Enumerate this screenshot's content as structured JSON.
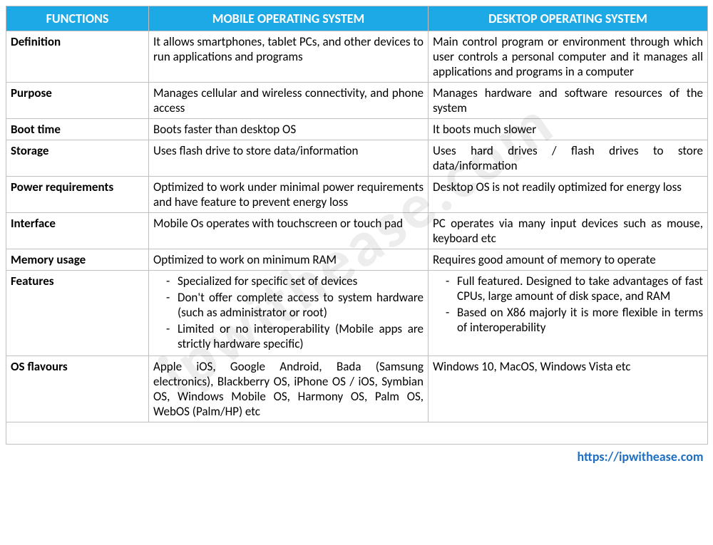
{
  "colors": {
    "header_bg": "#1ca9e6",
    "header_text": "#ffffff",
    "border": "#bfbfbf",
    "link": "#1f6fc2",
    "watermark": "rgba(0,0,0,0.07)"
  },
  "watermark_text": "ipwithease.com",
  "header": {
    "functions": "FUNCTIONS",
    "mobile": "MOBILE OPERATING SYSTEM",
    "desktop": "DESKTOP OPERATING SYSTEM"
  },
  "rows": {
    "definition": {
      "label": "Definition",
      "mobile": "It allows smartphones, tablet PCs, and other devices to run applications and programs",
      "desktop": "Main control program or environment through which user controls a personal computer and it manages all applications and programs in a computer"
    },
    "purpose": {
      "label": "Purpose",
      "mobile": "Manages cellular and wireless connectivity, and phone access",
      "desktop": "Manages hardware and software resources of the system"
    },
    "boot": {
      "label": "Boot time",
      "mobile": "Boots faster than desktop OS",
      "desktop": "It boots much slower"
    },
    "storage": {
      "label": "Storage",
      "mobile": "Uses flash drive to store data/information",
      "desktop": "Uses hard drives / flash drives to store data/information"
    },
    "power": {
      "label": "Power requirements",
      "mobile": "Optimized to work under minimal power requirements and have feature to prevent energy loss",
      "desktop": "Desktop OS is not readily optimized for energy loss"
    },
    "interface": {
      "label": "Interface",
      "mobile": "Mobile Os operates with touchscreen or touch pad",
      "desktop": "PC operates via many input devices such as mouse, keyboard etc"
    },
    "memory": {
      "label": "Memory usage",
      "mobile": "Optimized to work on minimum RAM",
      "desktop": "Requires good amount of memory to operate"
    },
    "features": {
      "label": "Features",
      "mobile_list": [
        "Specialized for specific set of devices",
        "Don't offer complete access to system hardware (such as administrator or root)",
        "Limited or no interoperability (Mobile apps are strictly hardware specific)"
      ],
      "desktop_list": [
        "Full featured. Designed to take advantages of fast CPUs, large amount of disk space, and RAM",
        "Based on X86 majorly it is more flexible in terms of interoperability"
      ]
    },
    "flavours": {
      "label": "OS flavours",
      "mobile": "Apple iOS, Google Android, Bada (Samsung electronics), Blackberry OS, iPhone OS / iOS, Symbian OS, Windows Mobile OS, Harmony OS, Palm OS, WebOS (Palm/HP) etc",
      "desktop": "Windows 10, MacOS, Windows Vista etc"
    }
  },
  "footer_link": "https://ipwithease.com"
}
